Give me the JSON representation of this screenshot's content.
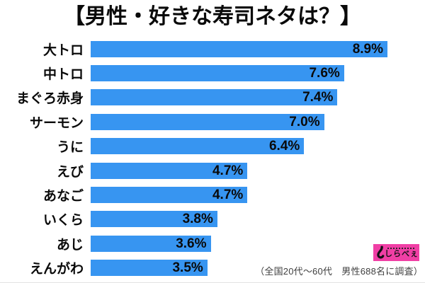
{
  "title": "【男性・好きな寿司ネタは？】",
  "chart_data": {
    "type": "bar",
    "orientation": "horizontal",
    "title": "【男性・好きな寿司ネタは？】",
    "categories": [
      "大トロ",
      "中トロ",
      "まぐろ赤身",
      "サーモン",
      "うに",
      "えび",
      "あなご",
      "いくら",
      "あじ",
      "えんがわ"
    ],
    "values": [
      8.9,
      7.6,
      7.4,
      7.0,
      6.4,
      4.7,
      4.7,
      3.8,
      3.6,
      3.5
    ],
    "value_labels": [
      "8.9%",
      "7.6%",
      "7.4%",
      "7.0%",
      "6.4%",
      "4.7%",
      "4.7%",
      "3.8%",
      "3.6%",
      "3.5%"
    ],
    "xlim": [
      0,
      8.9
    ],
    "grid": false,
    "legend": false,
    "value_label_position": "inside-end",
    "bar_color": "#3795f1"
  },
  "footer": {
    "note": "（全国20代～60代　男性688名に調査）"
  },
  "logo": {
    "text": "しらべぇ",
    "icon": "fishhook-icon",
    "bg_color": "#f03fa5"
  },
  "colors": {
    "bar": "#3795f1",
    "logo_pink": "#f03fa5",
    "note_text": "#3f3f3f"
  }
}
